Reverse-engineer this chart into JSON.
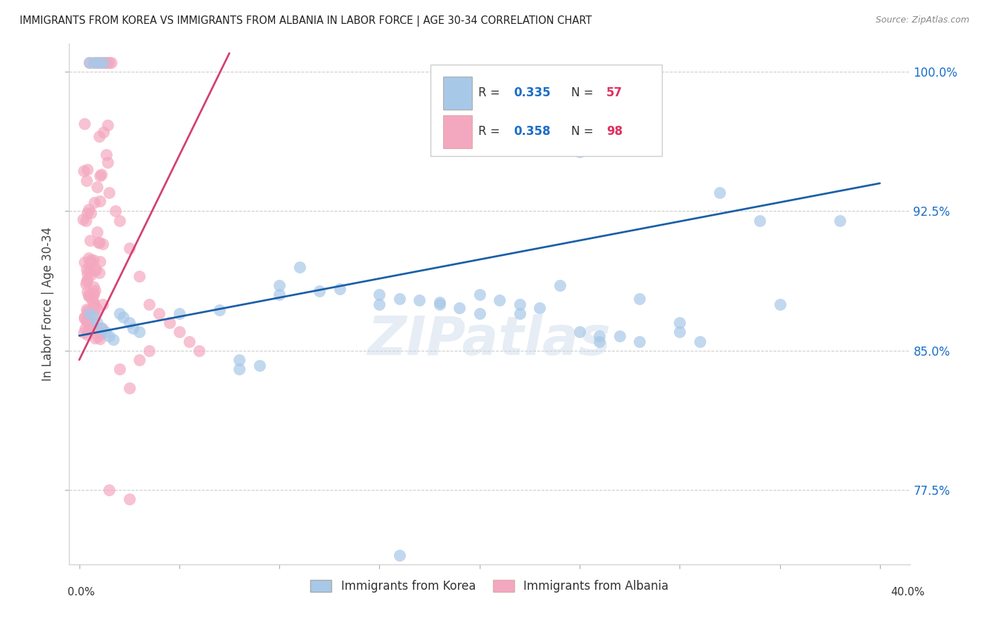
{
  "title": "IMMIGRANTS FROM KOREA VS IMMIGRANTS FROM ALBANIA IN LABOR FORCE | AGE 30-34 CORRELATION CHART",
  "source": "Source: ZipAtlas.com",
  "ylabel": "In Labor Force | Age 30-34",
  "xlim": [
    0.0,
    0.4
  ],
  "ylim": [
    0.735,
    1.015
  ],
  "korea_color": "#a8c8e8",
  "albania_color": "#f4a8c0",
  "korea_R": 0.335,
  "korea_N": 57,
  "albania_R": 0.358,
  "albania_N": 98,
  "trendline_korea_color": "#1a5fa8",
  "trendline_albania_color": "#d44070",
  "watermark": "ZIPatlas",
  "legend_R_color": "#1a6ec7",
  "legend_N_color_text": "#333333",
  "legend_N_value_color": "#e03060"
}
